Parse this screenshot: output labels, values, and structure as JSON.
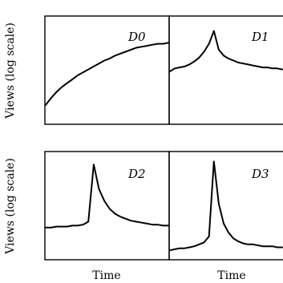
{
  "chart_data": [
    {
      "type": "line",
      "panel_label": "D0",
      "xlabel": "",
      "ylabel": "Views (log scale)",
      "yscale": "log",
      "series": [
        {
          "values": [
            0.18,
            0.25,
            0.31,
            0.36,
            0.4,
            0.44,
            0.48,
            0.51,
            0.54,
            0.57,
            0.6,
            0.63,
            0.65,
            0.68,
            0.7,
            0.72,
            0.74,
            0.76,
            0.77,
            0.78,
            0.79,
            0.8,
            0.8,
            0.81
          ]
        }
      ]
    },
    {
      "type": "line",
      "panel_label": "D1",
      "xlabel": "",
      "ylabel": "",
      "yscale": "log",
      "series": [
        {
          "values": [
            0.52,
            0.55,
            0.56,
            0.57,
            0.59,
            0.62,
            0.66,
            0.72,
            0.8,
            0.93,
            0.74,
            0.68,
            0.65,
            0.63,
            0.61,
            0.6,
            0.59,
            0.58,
            0.57,
            0.56,
            0.56,
            0.55,
            0.55,
            0.54
          ]
        }
      ]
    },
    {
      "type": "line",
      "panel_label": "D2",
      "xlabel": "Time",
      "ylabel": "Views (log scale)",
      "yscale": "log",
      "series": [
        {
          "values": [
            0.31,
            0.31,
            0.32,
            0.32,
            0.32,
            0.33,
            0.33,
            0.34,
            0.37,
            0.95,
            0.7,
            0.58,
            0.5,
            0.45,
            0.42,
            0.4,
            0.38,
            0.37,
            0.36,
            0.35,
            0.34,
            0.34,
            0.33,
            0.33
          ]
        }
      ]
    },
    {
      "type": "line",
      "panel_label": "D3",
      "xlabel": "Time",
      "ylabel": "",
      "yscale": "log",
      "series": [
        {
          "values": [
            0.08,
            0.09,
            0.1,
            0.1,
            0.11,
            0.12,
            0.14,
            0.16,
            0.22,
            0.98,
            0.55,
            0.35,
            0.26,
            0.2,
            0.17,
            0.15,
            0.14,
            0.14,
            0.13,
            0.12,
            0.12,
            0.12,
            0.11,
            0.11
          ]
        }
      ]
    }
  ]
}
